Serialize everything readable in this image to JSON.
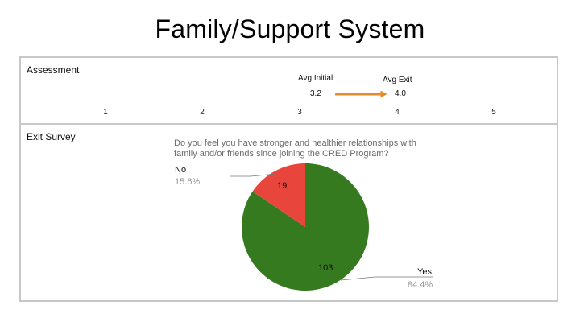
{
  "page": {
    "title": "Family/Support System"
  },
  "assessment": {
    "label": "Assessment",
    "scale_ticks": [
      "1",
      "2",
      "3",
      "4",
      "5"
    ],
    "avg_initial_label": "Avg Initial",
    "avg_initial_value": "3.2",
    "avg_exit_label": "Avg Exit",
    "avg_exit_value": "4.0",
    "arrow_color": "#e8892b"
  },
  "exit_survey": {
    "label": "Exit Survey",
    "question": "Do you feel you have stronger and healthier relationships with family and/or friends since joining the CRED Program?"
  },
  "chart_data": [
    {
      "type": "line",
      "title": "",
      "x_range": [
        1,
        5
      ],
      "ticks": [
        1,
        2,
        3,
        4,
        5
      ],
      "series": [
        {
          "name": "Avg Initial",
          "value": 3.2
        },
        {
          "name": "Avg Exit",
          "value": 4.0
        }
      ],
      "grid": false
    },
    {
      "type": "pie",
      "title": "",
      "categories": [
        "Yes",
        "No"
      ],
      "values": [
        103,
        19
      ],
      "percentages": [
        "84.4%",
        "15.6%"
      ],
      "colors": [
        "#357a1f",
        "#e8453c"
      ],
      "legend": "none"
    }
  ]
}
